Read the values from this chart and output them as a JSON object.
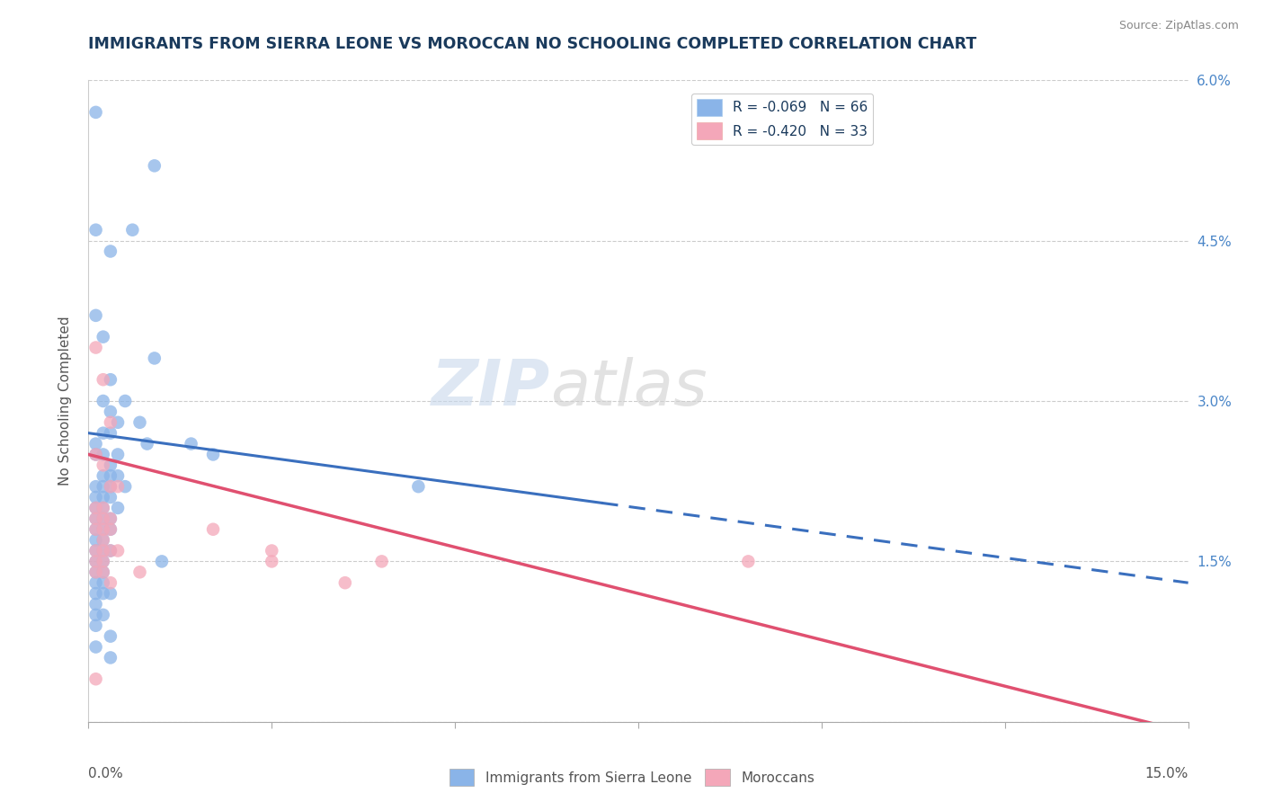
{
  "title": "IMMIGRANTS FROM SIERRA LEONE VS MOROCCAN NO SCHOOLING COMPLETED CORRELATION CHART",
  "source": "Source: ZipAtlas.com",
  "ylabel": "No Schooling Completed",
  "xmin": 0.0,
  "xmax": 0.15,
  "ymin": 0.0,
  "ymax": 0.06,
  "yticks": [
    0.0,
    0.015,
    0.03,
    0.045,
    0.06
  ],
  "ytick_labels": [
    "",
    "1.5%",
    "3.0%",
    "4.5%",
    "6.0%"
  ],
  "legend1_label": "R = -0.069   N = 66",
  "legend2_label": "R = -0.420   N = 33",
  "legend_bottom_label1": "Immigrants from Sierra Leone",
  "legend_bottom_label2": "Moroccans",
  "blue_color": "#8ab4e8",
  "pink_color": "#f4a7b9",
  "blue_line_color": "#3a6fbe",
  "pink_line_color": "#e05070",
  "watermark_zip": "ZIP",
  "watermark_atlas": "atlas",
  "blue_line_solid_end": 0.07,
  "blue_line_y_start": 0.027,
  "blue_line_y_end": 0.013,
  "pink_line_y_start": 0.025,
  "pink_line_y_end": -0.001,
  "blue_scatter": [
    [
      0.001,
      0.057
    ],
    [
      0.009,
      0.052
    ],
    [
      0.001,
      0.046
    ],
    [
      0.006,
      0.046
    ],
    [
      0.003,
      0.044
    ],
    [
      0.001,
      0.038
    ],
    [
      0.002,
      0.036
    ],
    [
      0.009,
      0.034
    ],
    [
      0.003,
      0.032
    ],
    [
      0.002,
      0.03
    ],
    [
      0.003,
      0.029
    ],
    [
      0.004,
      0.028
    ],
    [
      0.007,
      0.028
    ],
    [
      0.002,
      0.027
    ],
    [
      0.003,
      0.027
    ],
    [
      0.001,
      0.026
    ],
    [
      0.014,
      0.026
    ],
    [
      0.001,
      0.025
    ],
    [
      0.002,
      0.025
    ],
    [
      0.004,
      0.025
    ],
    [
      0.003,
      0.024
    ],
    [
      0.002,
      0.023
    ],
    [
      0.003,
      0.023
    ],
    [
      0.004,
      0.023
    ],
    [
      0.001,
      0.022
    ],
    [
      0.002,
      0.022
    ],
    [
      0.003,
      0.022
    ],
    [
      0.005,
      0.022
    ],
    [
      0.001,
      0.021
    ],
    [
      0.002,
      0.021
    ],
    [
      0.003,
      0.021
    ],
    [
      0.001,
      0.02
    ],
    [
      0.002,
      0.02
    ],
    [
      0.004,
      0.02
    ],
    [
      0.001,
      0.019
    ],
    [
      0.002,
      0.019
    ],
    [
      0.003,
      0.019
    ],
    [
      0.001,
      0.018
    ],
    [
      0.002,
      0.018
    ],
    [
      0.003,
      0.018
    ],
    [
      0.001,
      0.017
    ],
    [
      0.002,
      0.017
    ],
    [
      0.001,
      0.016
    ],
    [
      0.002,
      0.016
    ],
    [
      0.003,
      0.016
    ],
    [
      0.001,
      0.015
    ],
    [
      0.002,
      0.015
    ],
    [
      0.001,
      0.014
    ],
    [
      0.002,
      0.014
    ],
    [
      0.001,
      0.013
    ],
    [
      0.002,
      0.013
    ],
    [
      0.001,
      0.012
    ],
    [
      0.002,
      0.012
    ],
    [
      0.003,
      0.012
    ],
    [
      0.001,
      0.011
    ],
    [
      0.001,
      0.01
    ],
    [
      0.002,
      0.01
    ],
    [
      0.001,
      0.009
    ],
    [
      0.003,
      0.008
    ],
    [
      0.001,
      0.007
    ],
    [
      0.045,
      0.022
    ],
    [
      0.003,
      0.006
    ],
    [
      0.01,
      0.015
    ],
    [
      0.017,
      0.025
    ],
    [
      0.008,
      0.026
    ],
    [
      0.005,
      0.03
    ]
  ],
  "pink_scatter": [
    [
      0.001,
      0.035
    ],
    [
      0.002,
      0.032
    ],
    [
      0.003,
      0.028
    ],
    [
      0.001,
      0.025
    ],
    [
      0.002,
      0.024
    ],
    [
      0.003,
      0.022
    ],
    [
      0.004,
      0.022
    ],
    [
      0.001,
      0.02
    ],
    [
      0.002,
      0.02
    ],
    [
      0.001,
      0.019
    ],
    [
      0.002,
      0.019
    ],
    [
      0.003,
      0.019
    ],
    [
      0.001,
      0.018
    ],
    [
      0.002,
      0.018
    ],
    [
      0.003,
      0.018
    ],
    [
      0.002,
      0.017
    ],
    [
      0.001,
      0.016
    ],
    [
      0.002,
      0.016
    ],
    [
      0.003,
      0.016
    ],
    [
      0.004,
      0.016
    ],
    [
      0.001,
      0.015
    ],
    [
      0.002,
      0.015
    ],
    [
      0.001,
      0.014
    ],
    [
      0.002,
      0.014
    ],
    [
      0.003,
      0.013
    ],
    [
      0.017,
      0.018
    ],
    [
      0.025,
      0.016
    ],
    [
      0.025,
      0.015
    ],
    [
      0.035,
      0.013
    ],
    [
      0.04,
      0.015
    ],
    [
      0.09,
      0.015
    ],
    [
      0.001,
      0.004
    ],
    [
      0.007,
      0.014
    ]
  ]
}
